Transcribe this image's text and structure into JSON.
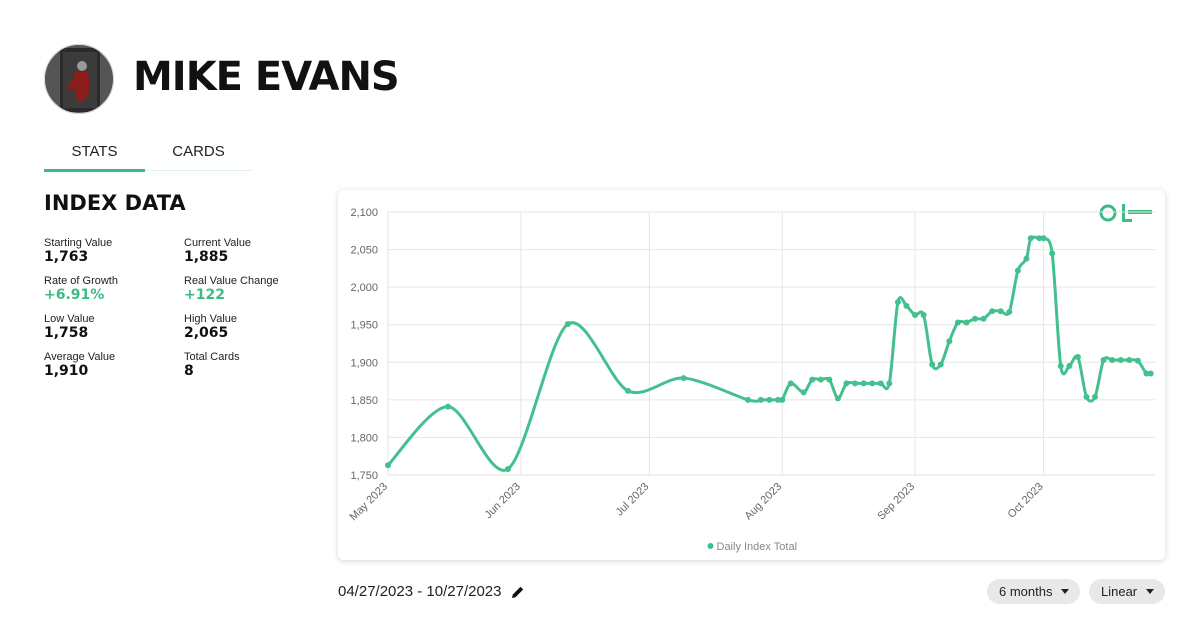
{
  "header": {
    "name": "MIKE EVANS"
  },
  "tabs": [
    "STATS",
    "CARDS"
  ],
  "index_data": {
    "title": "INDEX DATA",
    "stats": [
      {
        "label": "Starting Value",
        "value": "1,763"
      },
      {
        "label": "Current Value",
        "value": "1,885"
      },
      {
        "label": "Rate of Growth",
        "value": "+6.91%"
      },
      {
        "label": "Real Value Change",
        "value": "+122"
      },
      {
        "label": "Low Value",
        "value": "1,758"
      },
      {
        "label": "High Value",
        "value": "2,065"
      },
      {
        "label": "Average Value",
        "value": "1,910"
      },
      {
        "label": "Total Cards",
        "value": "8"
      }
    ]
  },
  "chart_data": {
    "type": "line",
    "x": [
      "2023-05-01",
      "2023-05-15",
      "2023-05-29",
      "2023-06-12",
      "2023-06-26",
      "2023-07-09",
      "2023-07-24",
      "2023-07-27",
      "2023-07-29",
      "2023-07-31",
      "2023-08-01",
      "2023-08-03",
      "2023-08-06",
      "2023-08-08",
      "2023-08-10",
      "2023-08-12",
      "2023-08-14",
      "2023-08-16",
      "2023-08-18",
      "2023-08-20",
      "2023-08-22",
      "2023-08-24",
      "2023-08-26",
      "2023-08-28",
      "2023-08-30",
      "2023-09-01",
      "2023-09-03",
      "2023-09-05",
      "2023-09-07",
      "2023-09-09",
      "2023-09-11",
      "2023-09-13",
      "2023-09-15",
      "2023-09-17",
      "2023-09-19",
      "2023-09-21",
      "2023-09-23",
      "2023-09-25",
      "2023-09-27",
      "2023-09-28",
      "2023-09-30",
      "2023-10-01",
      "2023-10-03",
      "2023-10-05",
      "2023-10-07",
      "2023-10-09",
      "2023-10-11",
      "2023-10-13",
      "2023-10-15",
      "2023-10-17",
      "2023-10-19",
      "2023-10-21",
      "2023-10-23",
      "2023-10-25",
      "2023-10-26"
    ],
    "series": [
      {
        "name": "Daily Index Total",
        "color": "#43c08d",
        "values": [
          1763,
          1841,
          1758,
          1951,
          1862,
          1879,
          1850,
          1850,
          1850,
          1850,
          1850,
          1872,
          1860,
          1877,
          1877,
          1877,
          1852,
          1872,
          1872,
          1872,
          1872,
          1872,
          1872,
          1980,
          1975,
          1963,
          1963,
          1897,
          1897,
          1928,
          1953,
          1953,
          1958,
          1958,
          1968,
          1968,
          1967,
          2022,
          2038,
          2065,
          2065,
          2065,
          2045,
          1895,
          1895,
          1907,
          1854,
          1854,
          1903,
          1903,
          1903,
          1903,
          1902,
          1885,
          1885
        ]
      }
    ],
    "xlim": [
      "2023-05-01",
      "2023-10-27"
    ],
    "xticks": [
      {
        "value": "2023-05-01",
        "label": "May 2023"
      },
      {
        "value": "2023-06-01",
        "label": "Jun 2023"
      },
      {
        "value": "2023-07-01",
        "label": "Jul 2023"
      },
      {
        "value": "2023-08-01",
        "label": "Aug 2023"
      },
      {
        "value": "2023-09-01",
        "label": "Sep 2023"
      },
      {
        "value": "2023-10-01",
        "label": "Oct 2023"
      }
    ],
    "ylim": [
      1750,
      2100
    ],
    "yticks": [
      {
        "value": 1750,
        "label": "1,750"
      },
      {
        "value": 1800,
        "label": "1,800"
      },
      {
        "value": 1850,
        "label": "1,850"
      },
      {
        "value": 1900,
        "label": "1,900"
      },
      {
        "value": 1950,
        "label": "1,950"
      },
      {
        "value": 2000,
        "label": "2,000"
      },
      {
        "value": 2050,
        "label": "2,050"
      },
      {
        "value": 2100,
        "label": "2,100"
      }
    ],
    "grid": true,
    "legend": "bottom"
  },
  "date_range": "04/27/2023 - 10/27/2023",
  "controls": {
    "period": "6 months",
    "scale": "Linear"
  }
}
